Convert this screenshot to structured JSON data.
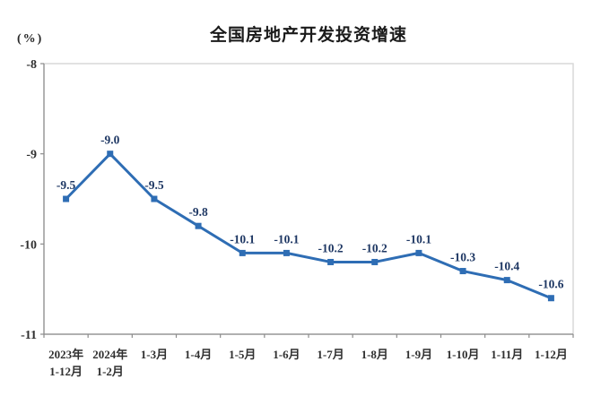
{
  "chart_data": {
    "type": "line",
    "title": "全国房地产开发投资增速",
    "unit_label": "(%)",
    "xlabel": "",
    "ylabel": "",
    "categories": [
      "2023年\n1-12月",
      "2024年\n1-2月",
      "1-3月",
      "1-4月",
      "1-5月",
      "1-6月",
      "1-7月",
      "1-8月",
      "1-9月",
      "1-10月",
      "1-11月",
      "1-12月"
    ],
    "values": [
      -9.5,
      -9.0,
      -9.5,
      -9.8,
      -10.1,
      -10.1,
      -10.2,
      -10.2,
      -10.1,
      -10.3,
      -10.4,
      -10.6
    ],
    "point_labels": [
      "-9.5",
      "-9.0",
      "-9.5",
      "-9.8",
      "-10.1",
      "-10.1",
      "-10.2",
      "-10.2",
      "-10.1",
      "-10.3",
      "-10.4",
      "-10.6"
    ],
    "ylim": [
      -11,
      -8
    ],
    "yticks": [
      -8,
      -9,
      -10,
      -11
    ],
    "grid": false,
    "legend_position": "none",
    "colors": {
      "line": "#2E6DB4",
      "marker": "#2E6DB4",
      "point_label": "#1F3864",
      "axis_text": "#303030",
      "plot_border": "#D9D9D9",
      "axis_line": "#8C8C8C",
      "title": "#1A1A1A"
    }
  }
}
